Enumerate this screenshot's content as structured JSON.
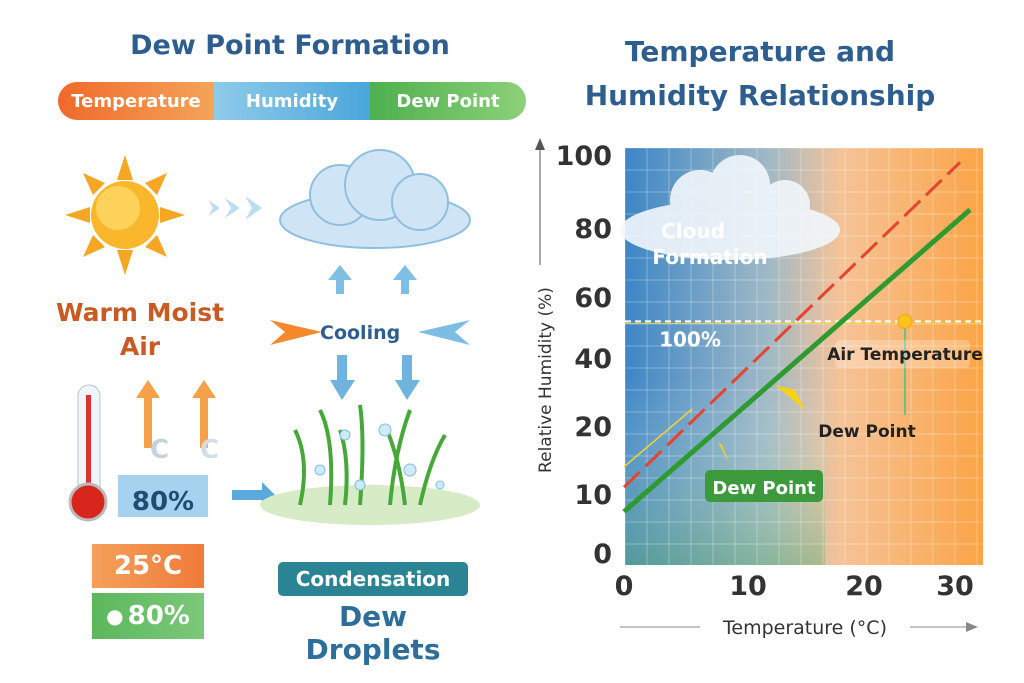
{
  "left": {
    "title": "Dew Point Formation",
    "legend": [
      {
        "label": "Temperature",
        "color": "#f07a3a"
      },
      {
        "label": "Humidity",
        "color": "#5fb0de"
      },
      {
        "label": "Dew Point",
        "color": "#5cb85c"
      }
    ],
    "warm_air_label": "Warm Moist Air",
    "cooling_label": "Cooling",
    "humidity_box": "80%",
    "c_marks": [
      "C",
      "C"
    ],
    "temperature_badge": "25°C",
    "humidity_badge": "80%",
    "condensation_label": "Condensation",
    "dew_droplets_label": "Dew Droplets"
  },
  "right": {
    "title_line1": "Temperature and",
    "title_line2": "Humidity Relationship"
  },
  "chart_data": {
    "type": "line",
    "title": "Temperature and Humidity Relationship",
    "xlabel": "Temperature (°C)",
    "ylabel": "Relative Humidity (%)",
    "xticks": [
      0,
      10,
      20,
      30
    ],
    "yticks": [
      0,
      10,
      20,
      40,
      60,
      80,
      100
    ],
    "xlim": [
      0,
      32
    ],
    "ylim": [
      0,
      100
    ],
    "grid": true,
    "series": [
      {
        "name": "Air Temperature",
        "style": "dashed",
        "color": "#e8432c",
        "x": [
          0,
          30.5
        ],
        "y": [
          11,
          98
        ]
      },
      {
        "name": "Dew Point",
        "style": "solid",
        "color": "#2f9a2f",
        "x": [
          0,
          31.5
        ],
        "y": [
          7,
          85
        ]
      }
    ],
    "saturation_line": {
      "y": 52,
      "label": "100%"
    },
    "annotations": [
      "Cloud Formation",
      "Dew Point",
      "Air Temperature",
      "Dew Point"
    ],
    "dew_point_marker": {
      "x": 24.5,
      "y": 52
    }
  }
}
